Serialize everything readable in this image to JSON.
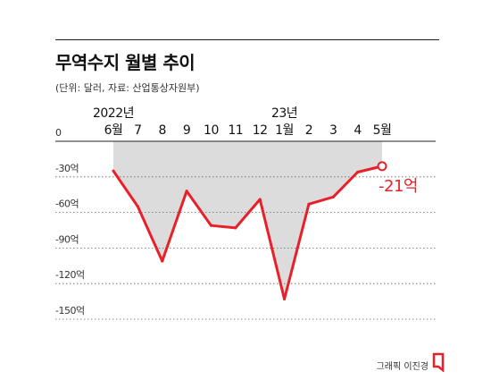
{
  "header": {
    "title": "무역수지 월별 추이",
    "subtitle": "(단위: 달러, 자료: 산업통상자원부)"
  },
  "footer": {
    "credit": "그래픽 이진경"
  },
  "colors": {
    "line": "#e8202a",
    "area": "#dcdcdc",
    "text": "#111111"
  },
  "chart_data": {
    "type": "line",
    "title": "무역수지 월별 추이",
    "subtitle": "(단위: 달러, 자료: 산업통상자원부)",
    "unit": "억",
    "categories": [
      "6월",
      "7",
      "8",
      "9",
      "10",
      "11",
      "12",
      "1월",
      "2",
      "3",
      "4",
      "5월"
    ],
    "year_labels": [
      {
        "text": "2022년",
        "category_index": 0
      },
      {
        "text": "23년",
        "category_index": 7
      }
    ],
    "values": [
      -25,
      -55,
      -101,
      -42,
      -71,
      -73,
      -49,
      -133,
      -53,
      -47,
      -26,
      -21
    ],
    "ylim": [
      -150,
      0
    ],
    "yticks": [
      0,
      -30,
      -60,
      -90,
      -120,
      -150
    ],
    "ytick_labels": [
      "0",
      "-30억",
      "-60억",
      "-90억",
      "-120억",
      "-150억"
    ],
    "fill_below_zero": true,
    "grid": "dotted-horizontal",
    "annotation": {
      "category_index": 11,
      "text": "-21억"
    }
  }
}
